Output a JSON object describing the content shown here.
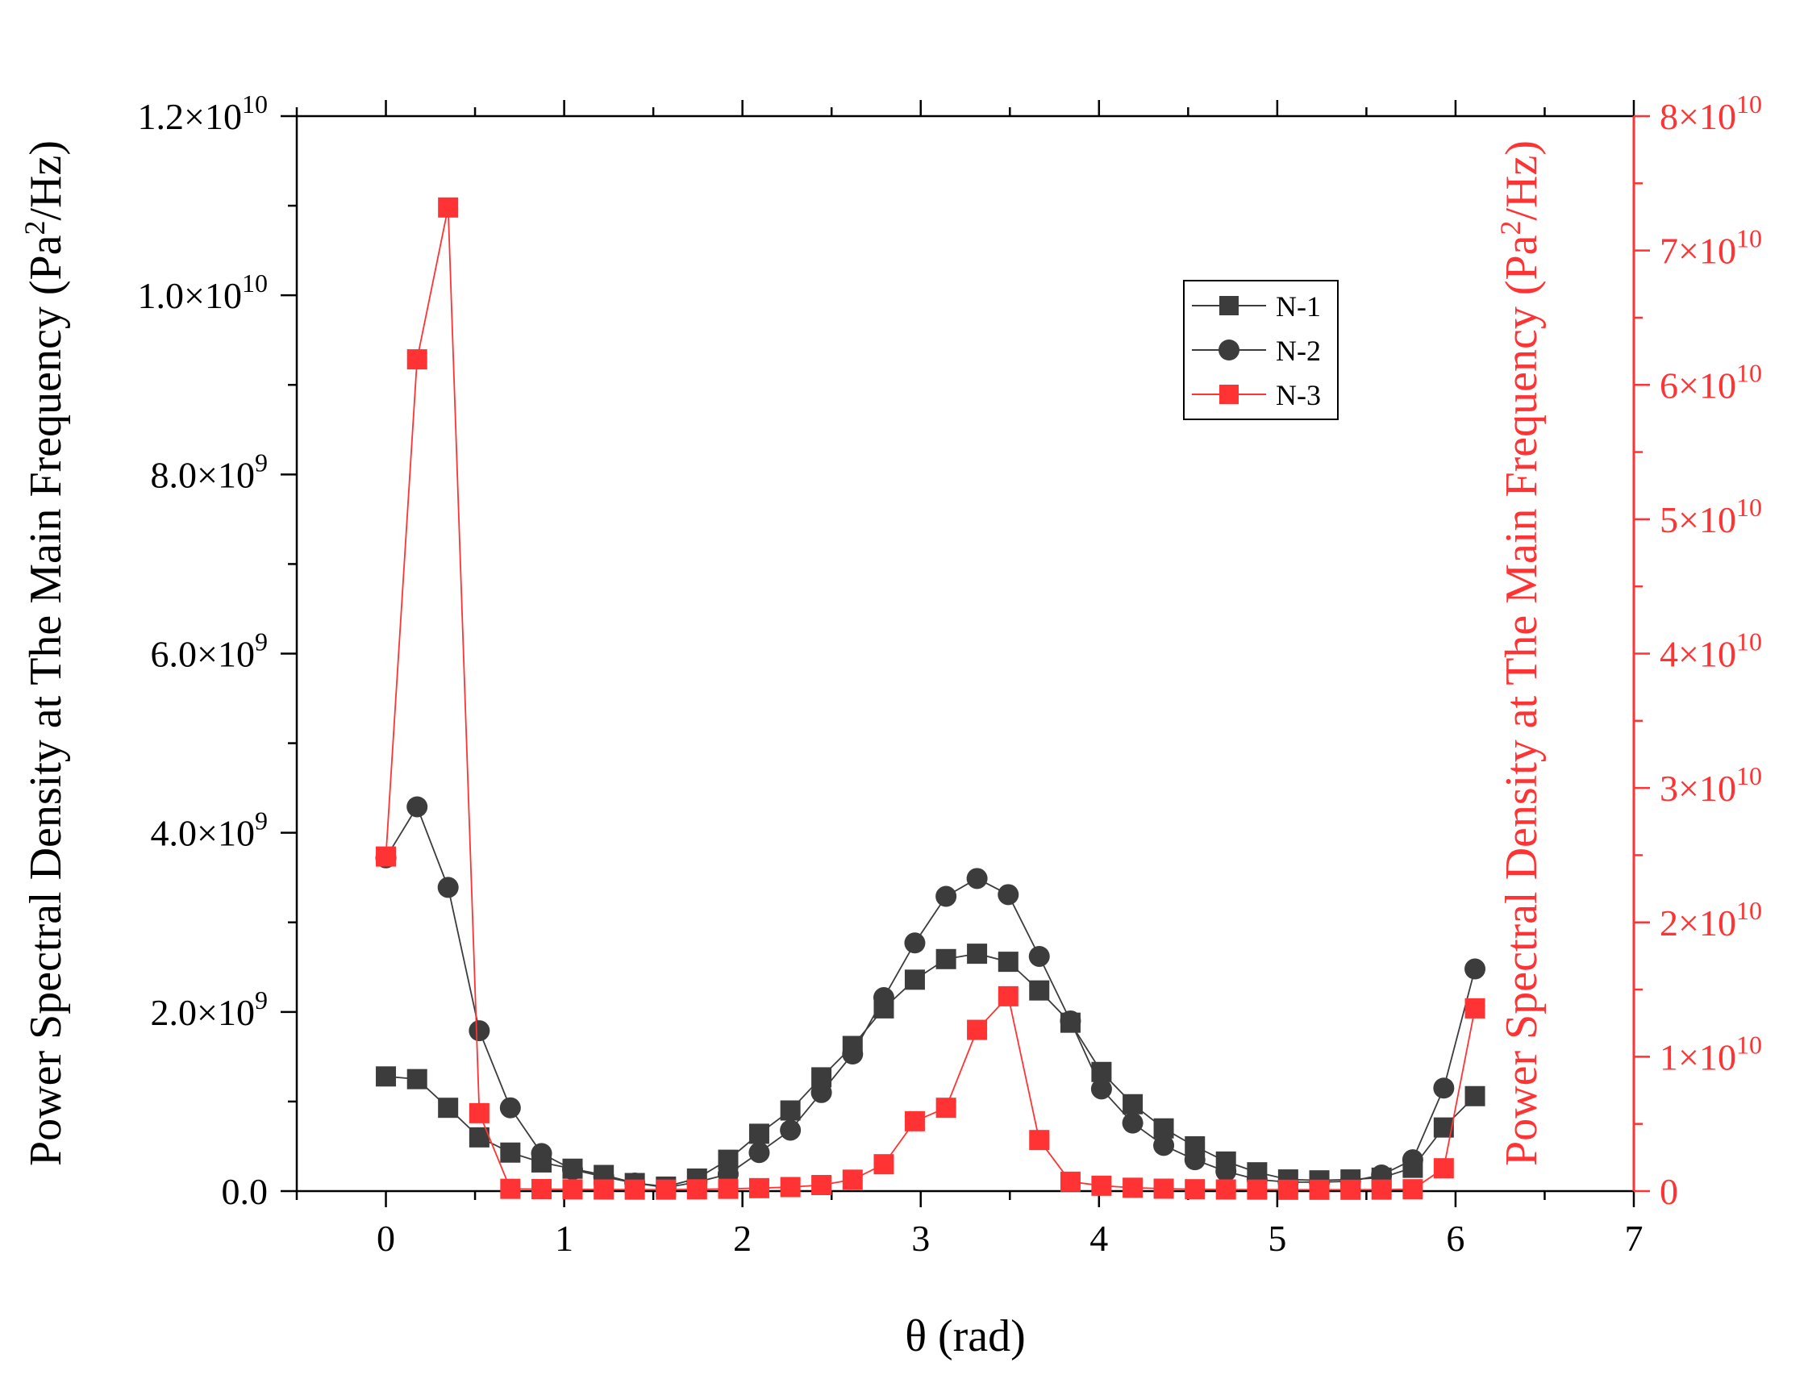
{
  "chart_data": {
    "type": "line",
    "x_axis": {
      "label": "θ (rad)",
      "range": [
        -0.5,
        7
      ],
      "ticks": [
        0,
        1,
        2,
        3,
        4,
        5,
        6,
        7
      ],
      "tick_labels": [
        "0",
        "1",
        "2",
        "3",
        "4",
        "5",
        "6",
        "7"
      ]
    },
    "y_axis_left": {
      "label": "Power Spectral Density at The Main Frequency (Pa²/Hz)",
      "label_parts": {
        "pre": "Power Spectral Density at The Main Frequency (Pa",
        "sup": "2",
        "post": "/Hz)"
      },
      "range": [
        0,
        12000000000
      ],
      "ticks": [
        {
          "value": 0,
          "mantissa": "0.0",
          "exp": ""
        },
        {
          "value": 2000000000,
          "mantissa": "2.0×10",
          "exp": "9"
        },
        {
          "value": 4000000000,
          "mantissa": "4.0×10",
          "exp": "9"
        },
        {
          "value": 6000000000,
          "mantissa": "6.0×10",
          "exp": "9"
        },
        {
          "value": 8000000000,
          "mantissa": "8.0×10",
          "exp": "9"
        },
        {
          "value": 10000000000,
          "mantissa": "1.0×10",
          "exp": "10"
        },
        {
          "value": 12000000000,
          "mantissa": "1.2×10",
          "exp": "10"
        }
      ],
      "color": "#000000"
    },
    "y_axis_right": {
      "label": "Power Spectral Density at The Main Frequency (Pa²/Hz)",
      "label_parts": {
        "pre": "Power Spectral Density at The Main Frequency (Pa",
        "sup": "2",
        "post": "/Hz)"
      },
      "range": [
        0,
        80000000000
      ],
      "ticks": [
        {
          "value": 0,
          "mantissa": "0",
          "exp": ""
        },
        {
          "value": 10000000000,
          "mantissa": "1×10",
          "exp": "10"
        },
        {
          "value": 20000000000,
          "mantissa": "2×10",
          "exp": "10"
        },
        {
          "value": 30000000000,
          "mantissa": "3×10",
          "exp": "10"
        },
        {
          "value": 40000000000,
          "mantissa": "4×10",
          "exp": "10"
        },
        {
          "value": 50000000000,
          "mantissa": "5×10",
          "exp": "10"
        },
        {
          "value": 60000000000,
          "mantissa": "6×10",
          "exp": "10"
        },
        {
          "value": 70000000000,
          "mantissa": "7×10",
          "exp": "10"
        },
        {
          "value": 80000000000,
          "mantissa": "8×10",
          "exp": "10"
        }
      ],
      "color": "#ff3333"
    },
    "legend": {
      "position": "upper-right",
      "entries": [
        "N-1",
        "N-2",
        "N-3"
      ]
    },
    "x": [
      0,
      0.175,
      0.349,
      0.524,
      0.698,
      0.873,
      1.047,
      1.222,
      1.396,
      1.571,
      1.745,
      1.92,
      2.094,
      2.269,
      2.443,
      2.618,
      2.793,
      2.967,
      3.142,
      3.316,
      3.491,
      3.665,
      3.84,
      4.014,
      4.189,
      4.363,
      4.538,
      4.712,
      4.887,
      5.061,
      5.236,
      5.411,
      5.585,
      5.76,
      5.934,
      6.109
    ],
    "series": [
      {
        "name": "N-1",
        "axis": "left",
        "marker": "square",
        "color": "#3c3c3c",
        "values": [
          1280000000,
          1250000000,
          930000000,
          600000000,
          430000000,
          320000000,
          250000000,
          180000000,
          90000000,
          50000000,
          140000000,
          350000000,
          640000000,
          900000000,
          1270000000,
          1620000000,
          2040000000,
          2360000000,
          2590000000,
          2650000000,
          2560000000,
          2240000000,
          1880000000,
          1330000000,
          970000000,
          700000000,
          500000000,
          330000000,
          210000000,
          130000000,
          120000000,
          130000000,
          150000000,
          260000000,
          710000000,
          1060000000
        ]
      },
      {
        "name": "N-2",
        "axis": "left",
        "marker": "circle",
        "color": "#3c3c3c",
        "values": [
          3720000000,
          4290000000,
          3390000000,
          1790000000,
          930000000,
          420000000,
          240000000,
          160000000,
          90000000,
          40000000,
          100000000,
          190000000,
          430000000,
          680000000,
          1100000000,
          1530000000,
          2160000000,
          2770000000,
          3290000000,
          3490000000,
          3310000000,
          2620000000,
          1900000000,
          1140000000,
          760000000,
          510000000,
          350000000,
          220000000,
          130000000,
          100000000,
          100000000,
          110000000,
          180000000,
          350000000,
          1150000000,
          2480000000
        ]
      },
      {
        "name": "N-3",
        "axis": "right",
        "marker": "square",
        "color": "#ff3333",
        "values": [
          24900000000,
          61900000000,
          73200000000,
          5800000000,
          170000000,
          150000000,
          130000000,
          120000000,
          110000000,
          110000000,
          130000000,
          170000000,
          220000000,
          300000000,
          450000000,
          850000000,
          2000000000,
          5200000000,
          6200000000,
          12000000000,
          14500000000,
          3800000000,
          700000000,
          400000000,
          250000000,
          180000000,
          140000000,
          120000000,
          110000000,
          100000000,
          100000000,
          100000000,
          110000000,
          140000000,
          1700000000,
          13600000000
        ]
      }
    ]
  }
}
